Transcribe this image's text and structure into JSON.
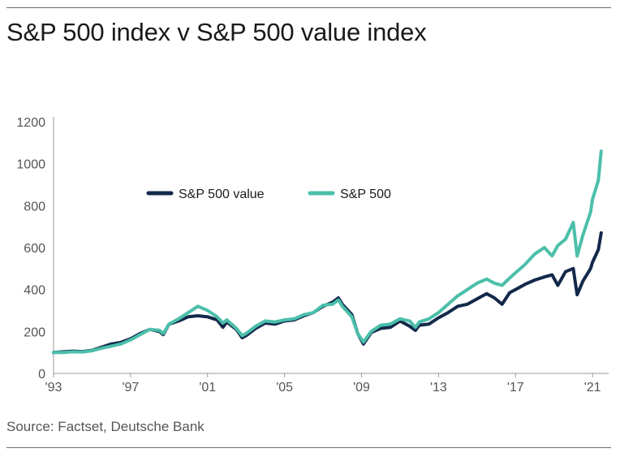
{
  "title": "S&P 500 index v S&P 500 value index",
  "source": "Source: Factset, Deutsche Bank",
  "chart_data": {
    "type": "line",
    "title": "S&P 500 index v S&P 500 value index",
    "xlabel": "",
    "ylabel": "",
    "xlim": [
      1993.0,
      2021.5
    ],
    "ylim": [
      0,
      1200
    ],
    "x_ticks": [
      {
        "value": 1993,
        "label": "'93"
      },
      {
        "value": 1997,
        "label": "'97"
      },
      {
        "value": 2001,
        "label": "'01"
      },
      {
        "value": 2005,
        "label": "'05"
      },
      {
        "value": 2009,
        "label": "'09"
      },
      {
        "value": 2013,
        "label": "'13"
      },
      {
        "value": 2017,
        "label": "'17"
      },
      {
        "value": 2021,
        "label": "'21"
      }
    ],
    "y_ticks": [
      0,
      200,
      400,
      600,
      800,
      1000,
      1200
    ],
    "legend_position": "top-center",
    "series": [
      {
        "name": "S&P 500 value",
        "color": "#13294b",
        "x": [
          1993.0,
          1993.5,
          1994.0,
          1994.5,
          1995.0,
          1995.5,
          1996.0,
          1996.5,
          1997.0,
          1997.5,
          1998.0,
          1998.5,
          1998.7,
          1999.0,
          1999.5,
          2000.0,
          2000.5,
          2001.0,
          2001.5,
          2001.8,
          2002.0,
          2002.5,
          2002.8,
          2003.0,
          2003.5,
          2004.0,
          2004.5,
          2005.0,
          2005.5,
          2006.0,
          2006.5,
          2007.0,
          2007.5,
          2007.8,
          2008.0,
          2008.5,
          2008.8,
          2009.1,
          2009.5,
          2010.0,
          2010.5,
          2011.0,
          2011.5,
          2011.8,
          2012.0,
          2012.5,
          2013.0,
          2013.5,
          2014.0,
          2014.5,
          2015.0,
          2015.5,
          2015.9,
          2016.3,
          2016.7,
          2017.0,
          2017.5,
          2018.0,
          2018.5,
          2018.9,
          2019.2,
          2019.6,
          2020.0,
          2020.2,
          2020.5,
          2020.9,
          2021.0,
          2021.3,
          2021.45
        ],
        "values": [
          100,
          103,
          106,
          104,
          110,
          125,
          140,
          148,
          165,
          190,
          210,
          200,
          185,
          235,
          250,
          270,
          275,
          270,
          255,
          220,
          245,
          210,
          170,
          180,
          215,
          240,
          235,
          250,
          255,
          275,
          290,
          320,
          340,
          360,
          330,
          280,
          190,
          140,
          195,
          215,
          220,
          250,
          225,
          205,
          230,
          235,
          265,
          290,
          320,
          330,
          355,
          380,
          360,
          330,
          385,
          400,
          425,
          445,
          460,
          470,
          420,
          485,
          500,
          375,
          440,
          500,
          530,
          590,
          670
        ]
      },
      {
        "name": "S&P 500",
        "color": "#4bbfaa",
        "x": [
          1993.0,
          1993.5,
          1994.0,
          1994.5,
          1995.0,
          1995.5,
          1996.0,
          1996.5,
          1997.0,
          1997.5,
          1998.0,
          1998.5,
          1998.7,
          1999.0,
          1999.5,
          2000.0,
          2000.5,
          2001.0,
          2001.5,
          2001.8,
          2002.0,
          2002.5,
          2002.8,
          2003.0,
          2003.5,
          2004.0,
          2004.5,
          2005.0,
          2005.5,
          2006.0,
          2006.5,
          2007.0,
          2007.5,
          2007.8,
          2008.0,
          2008.5,
          2008.8,
          2009.1,
          2009.5,
          2010.0,
          2010.5,
          2011.0,
          2011.5,
          2011.8,
          2012.0,
          2012.5,
          2013.0,
          2013.5,
          2014.0,
          2014.5,
          2015.0,
          2015.5,
          2015.9,
          2016.3,
          2016.7,
          2017.0,
          2017.5,
          2018.0,
          2018.5,
          2018.9,
          2019.2,
          2019.6,
          2020.0,
          2020.2,
          2020.5,
          2020.9,
          2021.0,
          2021.3,
          2021.45
        ],
        "values": [
          100,
          100,
          103,
          102,
          108,
          120,
          130,
          140,
          160,
          185,
          210,
          205,
          190,
          235,
          260,
          290,
          320,
          300,
          270,
          240,
          255,
          215,
          180,
          190,
          225,
          250,
          245,
          255,
          260,
          280,
          290,
          325,
          330,
          350,
          320,
          270,
          190,
          150,
          200,
          230,
          235,
          260,
          250,
          220,
          245,
          260,
          290,
          330,
          370,
          400,
          430,
          450,
          430,
          420,
          455,
          480,
          520,
          570,
          600,
          560,
          610,
          640,
          720,
          560,
          660,
          770,
          830,
          920,
          1060
        ]
      }
    ]
  }
}
